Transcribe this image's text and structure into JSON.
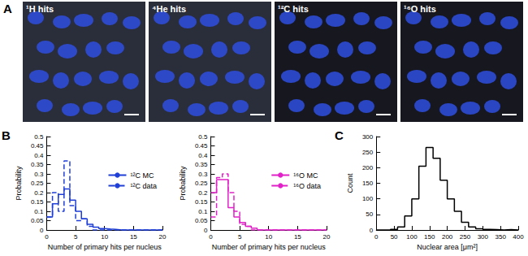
{
  "figure": {
    "panel_labels": [
      "A",
      "B",
      "C"
    ],
    "images": [
      {
        "label": "¹H hits"
      },
      {
        "label": "⁴He hits"
      },
      {
        "label": "¹²C hits"
      },
      {
        "label": "¹⁶O hits"
      }
    ]
  },
  "chart_data": [
    {
      "type": "histogram",
      "x_label": "Number of primary hits per nucleus",
      "y_label": "Probability",
      "bins": [
        0,
        1,
        2,
        3,
        4,
        5,
        6,
        7,
        8,
        9,
        10,
        11,
        12,
        13,
        14,
        15,
        16,
        17,
        18,
        19,
        20
      ],
      "xlim": [
        0,
        20
      ],
      "xticks": [
        0,
        5,
        10,
        15,
        20
      ],
      "ylim": [
        0,
        0.5
      ],
      "yticks": [
        0,
        0.05,
        0.1,
        0.15,
        0.2,
        0.25,
        0.3,
        0.35,
        0.4,
        0.45,
        0.5
      ],
      "legend": "right",
      "series": [
        {
          "name": "¹²C MC",
          "color": "#1f3fd6",
          "line_style": "solid",
          "values": [
            0.07,
            0.14,
            0.19,
            0.22,
            0.16,
            0.1,
            0.06,
            0.03,
            0.015,
            0.008,
            0.005,
            0.003,
            0,
            0,
            0,
            0,
            0,
            0,
            0,
            0
          ]
        },
        {
          "name": "¹²C data",
          "color": "#1f3fd6",
          "line_style": "dashed",
          "values": [
            0.07,
            0.2,
            0.1,
            0.37,
            0.13,
            0.05,
            0.06,
            0.02,
            0,
            0,
            0,
            0,
            0,
            0,
            0,
            0,
            0,
            0,
            0,
            0
          ]
        }
      ]
    },
    {
      "type": "histogram",
      "x_label": "Number of primary hits per nucleus",
      "y_label": "Probability",
      "bins": [
        0,
        1,
        2,
        3,
        4,
        5,
        6,
        7,
        8,
        9,
        10,
        11,
        12,
        13,
        14,
        15,
        16,
        17,
        18,
        19,
        20
      ],
      "xlim": [
        0,
        20
      ],
      "xticks": [
        0,
        5,
        10,
        15,
        20
      ],
      "ylim": [
        0,
        0.5
      ],
      "yticks": [
        0,
        0.05,
        0.1,
        0.15,
        0.2,
        0.25,
        0.3,
        0.35,
        0.4,
        0.45,
        0.5
      ],
      "legend": "right",
      "series": [
        {
          "name": "¹⁶O MC",
          "color": "#e022c8",
          "line_style": "solid",
          "values": [
            0.2,
            0.27,
            0.27,
            0.12,
            0.07,
            0.04,
            0.02,
            0.01,
            0,
            0,
            0,
            0,
            0,
            0,
            0,
            0,
            0,
            0,
            0,
            0
          ]
        },
        {
          "name": "¹⁶O data",
          "color": "#e022c8",
          "line_style": "dashed",
          "values": [
            0.07,
            0.28,
            0.3,
            0.2,
            0.1,
            0.03,
            0.02,
            0,
            0,
            0,
            0,
            0,
            0,
            0,
            0,
            0,
            0,
            0,
            0,
            0
          ]
        }
      ]
    },
    {
      "type": "histogram",
      "x_label": "Nuclear area [μm²]",
      "y_label": "Count",
      "bins": [
        0,
        20,
        40,
        60,
        80,
        100,
        120,
        140,
        160,
        180,
        200,
        220,
        240,
        260,
        280,
        300,
        320,
        340,
        360,
        380,
        400
      ],
      "values": [
        0,
        0,
        2,
        10,
        45,
        100,
        205,
        265,
        230,
        160,
        100,
        60,
        25,
        10,
        4,
        2,
        1,
        0,
        1,
        0
      ],
      "color": "#000000",
      "xlim": [
        0,
        400
      ],
      "xticks": [
        0,
        50,
        100,
        150,
        200,
        250,
        300,
        350,
        400
      ],
      "ylim": [
        0,
        300
      ],
      "yticks": [
        0,
        50,
        100,
        150,
        200,
        250,
        300
      ]
    }
  ]
}
